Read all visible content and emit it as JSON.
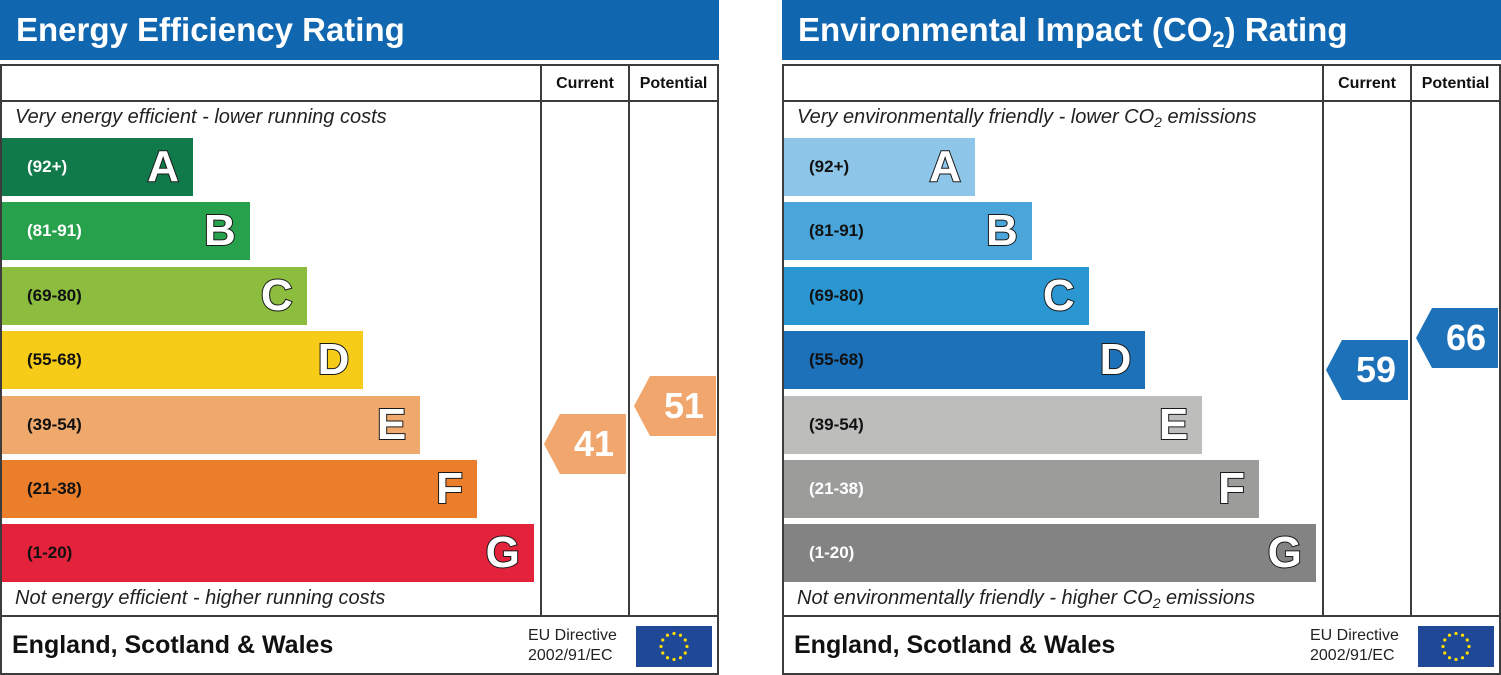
{
  "energy_efficiency": {
    "title": "Energy Efficiency Rating",
    "col_current": "Current",
    "col_potential": "Potential",
    "top_note": "Very energy efficient - lower running costs",
    "bottom_note": "Not energy efficient - higher running costs",
    "current": {
      "value": "41",
      "band": "E",
      "color": "#f0a66c"
    },
    "potential": {
      "value": "51",
      "band": "E",
      "color": "#f0a66c"
    },
    "bands": [
      {
        "range": "(92+)",
        "letter": "A",
        "color": "#107a4a",
        "text_color": "#ffffff"
      },
      {
        "range": "(81-91)",
        "letter": "B",
        "color": "#27a14b",
        "text_color": "#ffffff"
      },
      {
        "range": "(69-80)",
        "letter": "C",
        "color": "#8cbd3f",
        "text_color": "#111111"
      },
      {
        "range": "(55-68)",
        "letter": "D",
        "color": "#f7cc18",
        "text_color": "#111111"
      },
      {
        "range": "(39-54)",
        "letter": "E",
        "color": "#f0a96c",
        "text_color": "#111111"
      },
      {
        "range": "(21-38)",
        "letter": "F",
        "color": "#ea7e2b",
        "text_color": "#111111"
      },
      {
        "range": "(1-20)",
        "letter": "G",
        "color": "#e3223b",
        "text_color": "#111111"
      }
    ],
    "footer_region": "England, Scotland & Wales",
    "eu_line1": "EU Directive",
    "eu_line2": "2002/91/EC"
  },
  "environmental_impact": {
    "title": "Environmental Impact (CO₂) Rating",
    "title_main": "Environmental Impact (CO",
    "title_sub": "2",
    "title_end": ") Rating",
    "col_current": "Current",
    "col_potential": "Potential",
    "top_note": "Very environmentally friendly - lower CO₂ emissions",
    "top_note_main": "Very environmentally friendly - lower CO",
    "top_note_sub": "2",
    "top_note_end": " emissions",
    "bottom_note": "Not environmentally friendly - higher CO₂ emissions",
    "bottom_note_main": "Not environmentally friendly - higher CO",
    "bottom_note_sub": "2",
    "bottom_note_end": " emissions",
    "current": {
      "value": "59",
      "band": "D",
      "color": "#1d71b8"
    },
    "potential": {
      "value": "66",
      "band": "D",
      "color": "#1d71b8"
    },
    "bands": [
      {
        "range": "(92+)",
        "letter": "A",
        "color": "#8dc6e8",
        "text_color": "#111111"
      },
      {
        "range": "(81-91)",
        "letter": "B",
        "color": "#4aa6da",
        "text_color": "#111111"
      },
      {
        "range": "(69-80)",
        "letter": "C",
        "color": "#2b97d2",
        "text_color": "#111111"
      },
      {
        "range": "(55-68)",
        "letter": "D",
        "color": "#1d71b8",
        "text_color": "#111111"
      },
      {
        "range": "(39-54)",
        "letter": "E",
        "color": "#bdbdbb",
        "text_color": "#111111"
      },
      {
        "range": "(21-38)",
        "letter": "F",
        "color": "#9c9c9b",
        "text_color": "#ffffff"
      },
      {
        "range": "(1-20)",
        "letter": "G",
        "color": "#838383",
        "text_color": "#ffffff"
      }
    ],
    "footer_region": "England, Scotland & Wales",
    "eu_line1": "EU Directive",
    "eu_line2": "2002/91/EC"
  },
  "chart_data": [
    {
      "type": "bar",
      "title": "Energy Efficiency Rating",
      "categories": [
        "(92+)",
        "(81-91)",
        "(69-80)",
        "(55-68)",
        "(39-54)",
        "(21-38)",
        "(1-20)"
      ],
      "band_letters": [
        "A",
        "B",
        "C",
        "D",
        "E",
        "F",
        "G"
      ],
      "current": 41,
      "potential": 51
    },
    {
      "type": "bar",
      "title": "Environmental Impact (CO₂) Rating",
      "categories": [
        "(92+)",
        "(81-91)",
        "(69-80)",
        "(55-68)",
        "(39-54)",
        "(21-38)",
        "(1-20)"
      ],
      "band_letters": [
        "A",
        "B",
        "C",
        "D",
        "E",
        "F",
        "G"
      ],
      "current": 59,
      "potential": 66
    }
  ]
}
